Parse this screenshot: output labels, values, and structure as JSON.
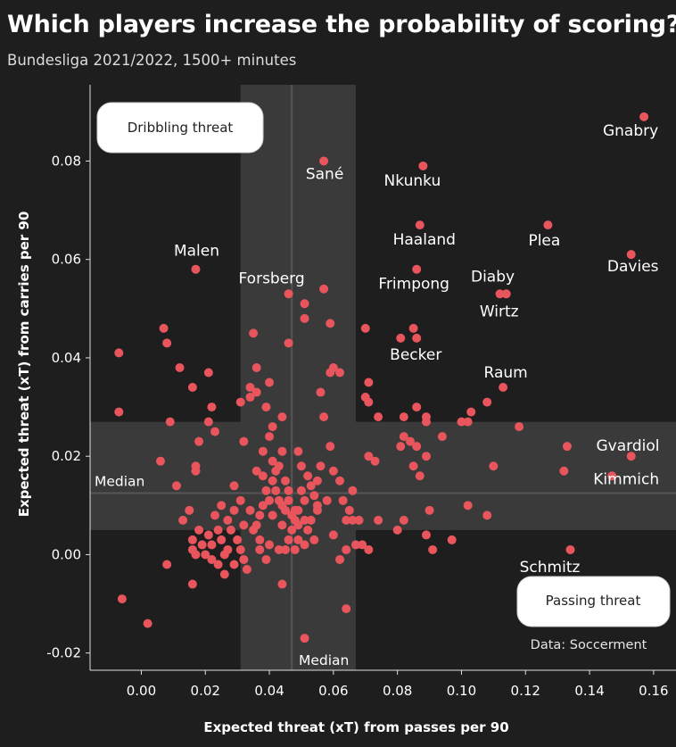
{
  "header": {
    "title": "Which players increase the probability of scoring?",
    "subtitle": "Bundesliga 2021/2022, 1500+ minutes"
  },
  "source": "Data: Soccerment",
  "colors": {
    "background": "#1e1e1e",
    "point": "#e8555c",
    "median_band": "#3a3a3a",
    "median_line": "#555555",
    "text": "#ffffff"
  },
  "chart_data": {
    "type": "scatter",
    "xlabel": "Expected threat (xT) from passes per 90",
    "ylabel": "Expected threat (xT) from carries per 90",
    "xlim": [
      -0.016,
      0.167
    ],
    "ylim": [
      -0.0235,
      0.0955
    ],
    "xticks": [
      "0.00",
      "0.02",
      "0.04",
      "0.06",
      "0.08",
      "0.10",
      "0.12",
      "0.14",
      "0.16"
    ],
    "yticks": [
      "-0.02",
      "0.00",
      "0.02",
      "0.04",
      "0.06",
      "0.08"
    ],
    "x_median": 0.047,
    "y_median": 0.0125,
    "x_band": [
      0.031,
      0.067
    ],
    "y_band": [
      0.005,
      0.027
    ],
    "median_label_x": "Median",
    "median_label_y": "Median",
    "quadrant_labels": {
      "top_left": "Dribbling threat",
      "bottom_right": "Passing threat"
    },
    "labeled_players": [
      {
        "name": "Gnabry",
        "x": 0.157,
        "y": 0.089
      },
      {
        "name": "Sané",
        "x": 0.057,
        "y": 0.08
      },
      {
        "name": "Nkunku",
        "x": 0.088,
        "y": 0.079
      },
      {
        "name": "Haaland",
        "x": 0.087,
        "y": 0.067
      },
      {
        "name": "Plea",
        "x": 0.127,
        "y": 0.067
      },
      {
        "name": "Malen",
        "x": 0.017,
        "y": 0.058
      },
      {
        "name": "Davies",
        "x": 0.153,
        "y": 0.061
      },
      {
        "name": "Forsberg",
        "x": 0.046,
        "y": 0.053
      },
      {
        "name": "Frimpong",
        "x": 0.086,
        "y": 0.058
      },
      {
        "name": "Diaby",
        "x": 0.112,
        "y": 0.053
      },
      {
        "name": "Wirtz",
        "x": 0.114,
        "y": 0.053
      },
      {
        "name": "Becker",
        "x": 0.081,
        "y": 0.044
      },
      {
        "name": "Raum",
        "x": 0.113,
        "y": 0.034
      },
      {
        "name": "Gvardiol",
        "x": 0.153,
        "y": 0.02
      },
      {
        "name": "Kimmich",
        "x": 0.147,
        "y": 0.016
      },
      {
        "name": "Schmitz",
        "x": 0.134,
        "y": 0.001
      }
    ],
    "other_points": [
      [
        -0.007,
        0.041
      ],
      [
        -0.007,
        0.029
      ],
      [
        -0.006,
        -0.009
      ],
      [
        0.002,
        -0.014
      ],
      [
        0.007,
        0.046
      ],
      [
        0.008,
        0.043
      ],
      [
        0.012,
        0.038
      ],
      [
        0.016,
        0.034
      ],
      [
        0.021,
        0.037
      ],
      [
        0.022,
        0.03
      ],
      [
        0.021,
        0.027
      ],
      [
        0.023,
        0.025
      ],
      [
        0.018,
        0.023
      ],
      [
        0.017,
        0.018
      ],
      [
        0.017,
        0.017
      ],
      [
        0.009,
        0.027
      ],
      [
        0.006,
        0.019
      ],
      [
        0.011,
        0.014
      ],
      [
        0.015,
        0.009
      ],
      [
        0.013,
        0.007
      ],
      [
        0.018,
        0.005
      ],
      [
        0.016,
        0.003
      ],
      [
        0.016,
        0.001
      ],
      [
        0.017,
        0.0
      ],
      [
        0.008,
        -0.002
      ],
      [
        0.016,
        -0.006
      ],
      [
        0.021,
        0.004
      ],
      [
        0.022,
        0.002
      ],
      [
        0.024,
        -0.002
      ],
      [
        0.026,
        -0.004
      ],
      [
        0.026,
        0.0
      ],
      [
        0.025,
        0.003
      ],
      [
        0.027,
        0.007
      ],
      [
        0.029,
        0.014
      ],
      [
        0.031,
        0.011
      ],
      [
        0.032,
        0.006
      ],
      [
        0.03,
        0.003
      ],
      [
        0.031,
        0.001
      ],
      [
        0.032,
        -0.001
      ],
      [
        0.033,
        -0.003
      ],
      [
        0.034,
        0.032
      ],
      [
        0.034,
        0.034
      ],
      [
        0.036,
        0.033
      ],
      [
        0.036,
        0.038
      ],
      [
        0.035,
        0.045
      ],
      [
        0.031,
        0.031
      ],
      [
        0.032,
        0.023
      ],
      [
        0.036,
        0.017
      ],
      [
        0.038,
        0.016
      ],
      [
        0.038,
        0.021
      ],
      [
        0.041,
        0.019
      ],
      [
        0.042,
        0.017
      ],
      [
        0.04,
        0.024
      ],
      [
        0.041,
        0.026
      ],
      [
        0.044,
        0.028
      ],
      [
        0.044,
        0.021
      ],
      [
        0.043,
        0.018
      ],
      [
        0.045,
        0.015
      ],
      [
        0.046,
        0.013
      ],
      [
        0.042,
        0.013
      ],
      [
        0.04,
        0.011
      ],
      [
        0.038,
        0.01
      ],
      [
        0.037,
        0.008
      ],
      [
        0.036,
        0.006
      ],
      [
        0.037,
        0.003
      ],
      [
        0.04,
        0.002
      ],
      [
        0.043,
        0.001
      ],
      [
        0.044,
        0.006
      ],
      [
        0.046,
        0.003
      ],
      [
        0.048,
        0.007
      ],
      [
        0.049,
        0.009
      ],
      [
        0.051,
        0.011
      ],
      [
        0.053,
        0.014
      ],
      [
        0.052,
        0.016
      ],
      [
        0.05,
        0.018
      ],
      [
        0.049,
        0.021
      ],
      [
        0.047,
        0.008
      ],
      [
        0.049,
        0.006
      ],
      [
        0.052,
        0.005
      ],
      [
        0.054,
        0.003
      ],
      [
        0.051,
        0.002
      ],
      [
        0.048,
        0.001
      ],
      [
        0.053,
        0.007
      ],
      [
        0.055,
        0.009
      ],
      [
        0.058,
        0.011
      ],
      [
        0.055,
        0.015
      ],
      [
        0.056,
        0.018
      ],
      [
        0.059,
        0.022
      ],
      [
        0.057,
        0.028
      ],
      [
        0.056,
        0.033
      ],
      [
        0.059,
        0.037
      ],
      [
        0.06,
        0.038
      ],
      [
        0.062,
        0.037
      ],
      [
        0.059,
        0.047
      ],
      [
        0.051,
        0.048
      ],
      [
        0.051,
        0.051
      ],
      [
        0.057,
        0.054
      ],
      [
        0.046,
        0.043
      ],
      [
        0.04,
        0.035
      ],
      [
        0.039,
        0.03
      ],
      [
        0.062,
        0.015
      ],
      [
        0.063,
        0.011
      ],
      [
        0.065,
        0.009
      ],
      [
        0.066,
        0.013
      ],
      [
        0.064,
        0.007
      ],
      [
        0.066,
        0.007
      ],
      [
        0.068,
        0.007
      ],
      [
        0.067,
        0.002
      ],
      [
        0.064,
        0.001
      ],
      [
        0.062,
        -0.001
      ],
      [
        0.064,
        -0.011
      ],
      [
        0.051,
        -0.017
      ],
      [
        0.044,
        -0.006
      ],
      [
        0.06,
        0.004
      ],
      [
        0.07,
        0.032
      ],
      [
        0.071,
        0.031
      ],
      [
        0.071,
        0.035
      ],
      [
        0.07,
        0.046
      ],
      [
        0.074,
        0.028
      ],
      [
        0.073,
        0.019
      ],
      [
        0.071,
        0.02
      ],
      [
        0.081,
        0.022
      ],
      [
        0.082,
        0.024
      ],
      [
        0.084,
        0.023
      ],
      [
        0.086,
        0.022
      ],
      [
        0.085,
        0.018
      ],
      [
        0.087,
        0.016
      ],
      [
        0.089,
        0.02
      ],
      [
        0.082,
        0.028
      ],
      [
        0.086,
        0.03
      ],
      [
        0.089,
        0.028
      ],
      [
        0.089,
        0.027
      ],
      [
        0.094,
        0.024
      ],
      [
        0.102,
        0.027
      ],
      [
        0.103,
        0.029
      ],
      [
        0.108,
        0.031
      ],
      [
        0.1,
        0.027
      ],
      [
        0.09,
        0.009
      ],
      [
        0.089,
        0.004
      ],
      [
        0.091,
        0.001
      ],
      [
        0.097,
        0.003
      ],
      [
        0.102,
        0.01
      ],
      [
        0.108,
        0.008
      ],
      [
        0.082,
        0.007
      ],
      [
        0.08,
        0.005
      ],
      [
        0.074,
        0.007
      ],
      [
        0.071,
        0.001
      ],
      [
        0.069,
        0.002
      ],
      [
        0.039,
        -0.001
      ],
      [
        0.037,
        0.001
      ],
      [
        0.035,
        0.005
      ],
      [
        0.034,
        0.009
      ],
      [
        0.029,
        0.009
      ],
      [
        0.025,
        0.01
      ],
      [
        0.023,
        0.008
      ],
      [
        0.028,
        0.005
      ],
      [
        0.024,
        0.005
      ],
      [
        0.019,
        0.002
      ],
      [
        0.02,
        0.0
      ],
      [
        0.022,
        -0.001
      ],
      [
        0.027,
        0.001
      ],
      [
        0.029,
        -0.002
      ],
      [
        0.041,
        0.008
      ],
      [
        0.044,
        0.01
      ],
      [
        0.041,
        0.015
      ],
      [
        0.043,
        0.011
      ],
      [
        0.045,
        0.009
      ],
      [
        0.047,
        0.005
      ],
      [
        0.048,
        0.009
      ],
      [
        0.05,
        0.013
      ],
      [
        0.051,
        0.007
      ],
      [
        0.054,
        0.012
      ],
      [
        0.06,
        0.017
      ],
      [
        0.055,
        0.01
      ],
      [
        0.046,
        0.011
      ],
      [
        0.039,
        0.013
      ],
      [
        0.049,
        0.003
      ],
      [
        0.045,
        0.001
      ],
      [
        0.11,
        0.018
      ],
      [
        0.118,
        0.026
      ],
      [
        0.132,
        0.017
      ],
      [
        0.133,
        0.022
      ],
      [
        0.085,
        0.046
      ],
      [
        0.086,
        0.044
      ]
    ]
  }
}
